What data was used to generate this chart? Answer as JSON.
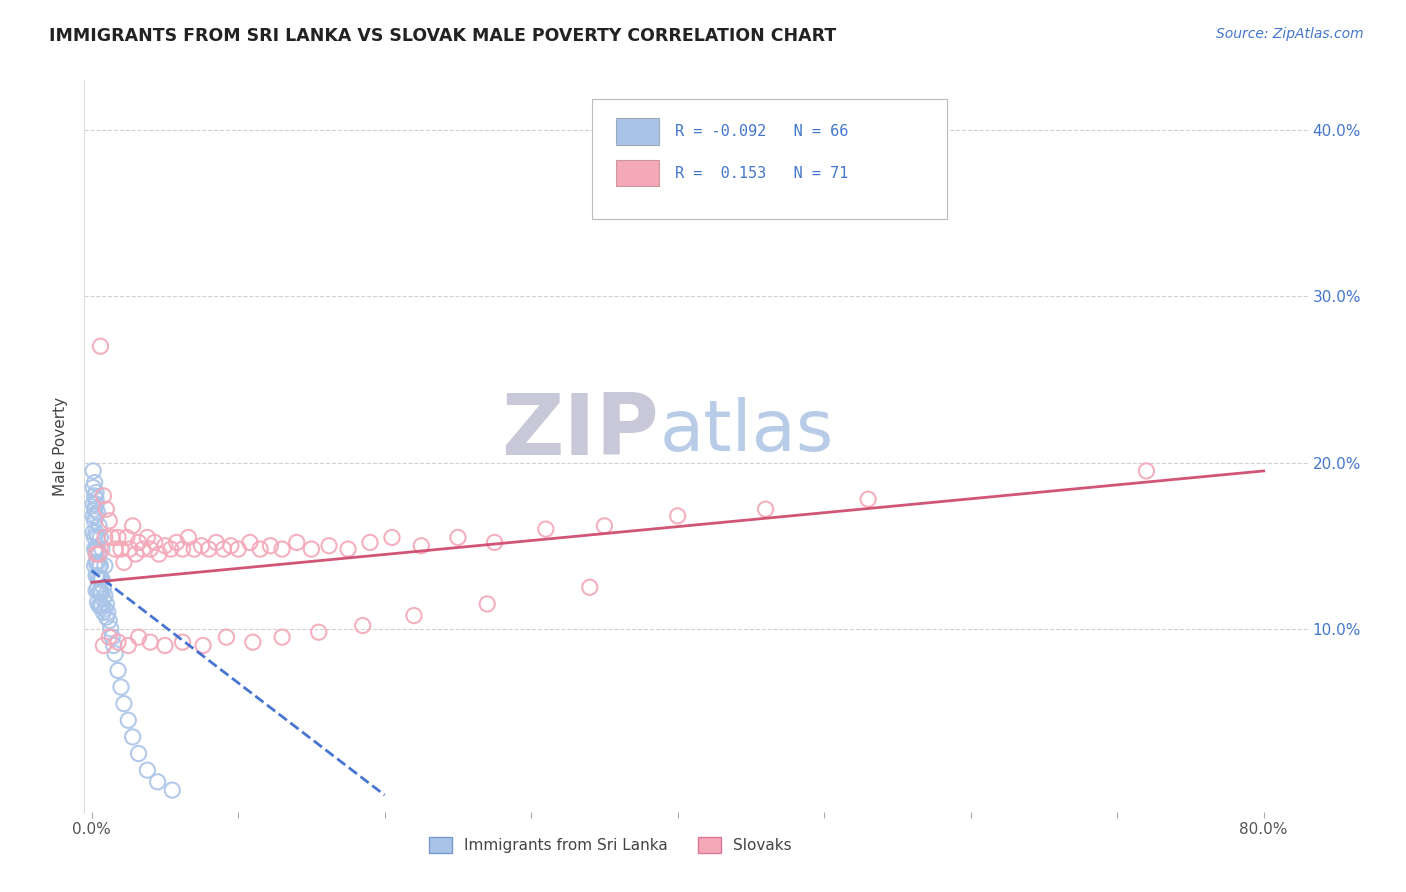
{
  "title": "IMMIGRANTS FROM SRI LANKA VS SLOVAK MALE POVERTY CORRELATION CHART",
  "source_text": "Source: ZipAtlas.com",
  "ylabel": "Male Poverty",
  "series1_color": "#aac4e8",
  "series1_edge": "#7799cc",
  "series2_color": "#f4a8b8",
  "series2_edge": "#dd7799",
  "trend1_color": "#3366cc",
  "trend2_color": "#cc4466",
  "background_color": "#ffffff",
  "grid_color": "#cccccc",
  "title_color": "#222222",
  "watermark_zip_color": "#c8c8d8",
  "watermark_atlas_color": "#b8cce8",
  "label_color": "#4477cc",
  "xlim": [
    -0.005,
    0.83
  ],
  "ylim": [
    -0.01,
    0.43
  ],
  "series1_x": [
    0.001,
    0.001,
    0.001,
    0.001,
    0.002,
    0.002,
    0.002,
    0.002,
    0.002,
    0.002,
    0.003,
    0.003,
    0.003,
    0.003,
    0.003,
    0.003,
    0.003,
    0.004,
    0.004,
    0.004,
    0.004,
    0.004,
    0.004,
    0.005,
    0.005,
    0.005,
    0.005,
    0.005,
    0.006,
    0.006,
    0.006,
    0.006,
    0.007,
    0.007,
    0.007,
    0.008,
    0.008,
    0.008,
    0.009,
    0.009,
    0.01,
    0.01,
    0.011,
    0.012,
    0.013,
    0.014,
    0.015,
    0.016,
    0.018,
    0.02,
    0.022,
    0.025,
    0.028,
    0.032,
    0.038,
    0.045,
    0.055,
    0.001,
    0.002,
    0.003,
    0.003,
    0.004,
    0.005,
    0.006,
    0.007,
    0.009
  ],
  "series1_y": [
    0.185,
    0.175,
    0.168,
    0.158,
    0.18,
    0.172,
    0.165,
    0.155,
    0.148,
    0.138,
    0.178,
    0.168,
    0.158,
    0.148,
    0.14,
    0.132,
    0.123,
    0.155,
    0.148,
    0.14,
    0.132,
    0.124,
    0.116,
    0.145,
    0.138,
    0.13,
    0.122,
    0.114,
    0.138,
    0.13,
    0.122,
    0.114,
    0.13,
    0.122,
    0.114,
    0.125,
    0.118,
    0.11,
    0.12,
    0.112,
    0.115,
    0.107,
    0.11,
    0.105,
    0.1,
    0.095,
    0.09,
    0.085,
    0.075,
    0.065,
    0.055,
    0.045,
    0.035,
    0.025,
    0.015,
    0.008,
    0.003,
    0.195,
    0.188,
    0.182,
    0.175,
    0.17,
    0.162,
    0.155,
    0.148,
    0.138
  ],
  "series2_x": [
    0.003,
    0.005,
    0.006,
    0.008,
    0.009,
    0.01,
    0.012,
    0.014,
    0.016,
    0.018,
    0.02,
    0.022,
    0.024,
    0.026,
    0.028,
    0.03,
    0.032,
    0.035,
    0.038,
    0.04,
    0.043,
    0.046,
    0.05,
    0.054,
    0.058,
    0.062,
    0.066,
    0.07,
    0.075,
    0.08,
    0.085,
    0.09,
    0.095,
    0.1,
    0.108,
    0.115,
    0.122,
    0.13,
    0.14,
    0.15,
    0.162,
    0.175,
    0.19,
    0.205,
    0.225,
    0.25,
    0.275,
    0.31,
    0.35,
    0.4,
    0.46,
    0.53,
    0.72,
    0.008,
    0.012,
    0.018,
    0.025,
    0.032,
    0.04,
    0.05,
    0.062,
    0.076,
    0.092,
    0.11,
    0.13,
    0.155,
    0.185,
    0.22,
    0.27,
    0.34
  ],
  "series2_y": [
    0.145,
    0.145,
    0.27,
    0.18,
    0.155,
    0.172,
    0.165,
    0.155,
    0.148,
    0.155,
    0.148,
    0.14,
    0.155,
    0.148,
    0.162,
    0.145,
    0.152,
    0.148,
    0.155,
    0.148,
    0.152,
    0.145,
    0.15,
    0.148,
    0.152,
    0.148,
    0.155,
    0.148,
    0.15,
    0.148,
    0.152,
    0.148,
    0.15,
    0.148,
    0.152,
    0.148,
    0.15,
    0.148,
    0.152,
    0.148,
    0.15,
    0.148,
    0.152,
    0.155,
    0.15,
    0.155,
    0.152,
    0.16,
    0.162,
    0.168,
    0.172,
    0.178,
    0.195,
    0.09,
    0.095,
    0.092,
    0.09,
    0.095,
    0.092,
    0.09,
    0.092,
    0.09,
    0.095,
    0.092,
    0.095,
    0.098,
    0.102,
    0.108,
    0.115,
    0.125
  ],
  "trend1_x0": 0.0,
  "trend1_x1": 0.2,
  "trend1_y0": 0.135,
  "trend1_y1": 0.0,
  "trend2_x0": 0.0,
  "trend2_x1": 0.8,
  "trend2_y0": 0.128,
  "trend2_y1": 0.195
}
